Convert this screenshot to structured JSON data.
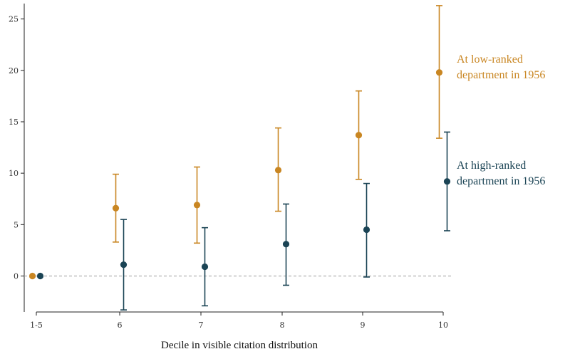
{
  "chart_data": {
    "type": "scatter",
    "subtype": "point estimates with confidence intervals",
    "xlabel": "Decile in visible citation distribution",
    "ylabel": "",
    "categories": [
      "1-5",
      "6",
      "7",
      "8",
      "9",
      "10"
    ],
    "ylim": [
      -3.5,
      26.5
    ],
    "yticks": [
      0,
      5,
      10,
      15,
      20,
      25
    ],
    "reference_line": {
      "y": 0,
      "style": "dashed"
    },
    "grid": false,
    "legend": "inline labels, right side",
    "series": [
      {
        "name": "At low-ranked department in 1956",
        "label_lines": [
          "At low-ranked",
          "department in 1956"
        ],
        "color": "#c98622",
        "estimates": [
          0,
          6.6,
          6.9,
          10.3,
          13.7,
          19.8
        ],
        "ci_low": [
          null,
          3.3,
          3.2,
          6.3,
          9.4,
          13.4
        ],
        "ci_high": [
          null,
          9.9,
          10.6,
          14.4,
          18.0,
          26.3
        ]
      },
      {
        "name": "At high-ranked department in 1956",
        "label_lines": [
          "At high-ranked",
          "department in 1956"
        ],
        "color": "#1b4455",
        "estimates": [
          0,
          1.1,
          0.9,
          3.1,
          4.5,
          9.2
        ],
        "ci_low": [
          null,
          -3.3,
          -2.9,
          -0.9,
          -0.1,
          4.4
        ],
        "ci_high": [
          null,
          5.5,
          4.7,
          7.0,
          9.0,
          14.0
        ]
      }
    ]
  }
}
